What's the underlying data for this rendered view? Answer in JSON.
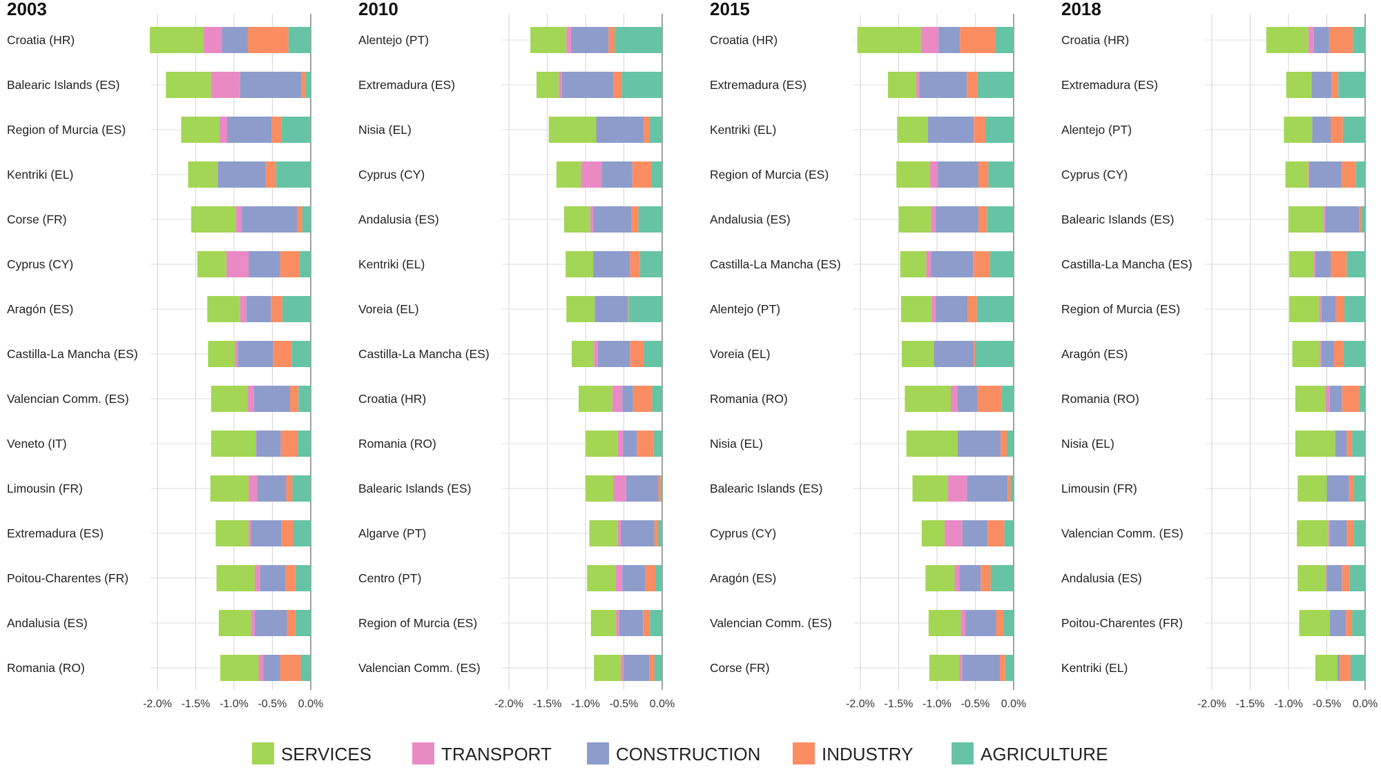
{
  "chart_data": {
    "type": "bar",
    "orientation": "horizontal",
    "stacked": true,
    "units": "%",
    "xlim": [
      -2.0,
      0.0
    ],
    "xticks": [
      "-2.0%",
      "-1.5%",
      "-1.0%",
      "-0.5%",
      "0.0%"
    ],
    "sectors": [
      "SERVICES",
      "TRANSPORT",
      "CONSTRUCTION",
      "INDUSTRY",
      "AGRICULTURE"
    ],
    "legend": [
      {
        "label": "SERVICES",
        "color": "#a3d654"
      },
      {
        "label": "TRANSPORT",
        "color": "#e98ac5"
      },
      {
        "label": "CONSTRUCTION",
        "color": "#8d9ccb"
      },
      {
        "label": "INDUSTRY",
        "color": "#fb8d62"
      },
      {
        "label": "AGRICULTURE",
        "color": "#66c3a5"
      }
    ],
    "panels": [
      {
        "title": "2003",
        "rows": [
          {
            "region": "Croatia (HR)",
            "values": [
              -0.7,
              -0.24,
              -0.34,
              -0.53,
              -0.29
            ]
          },
          {
            "region": "Balearic Islands (ES)",
            "values": [
              -0.59,
              -0.38,
              -0.8,
              -0.05,
              -0.07
            ]
          },
          {
            "region": "Region of Murcia (ES)",
            "values": [
              -0.5,
              -0.1,
              -0.58,
              -0.13,
              -0.38
            ]
          },
          {
            "region": "Kentriki (EL)",
            "values": [
              -0.38,
              -0.01,
              -0.62,
              -0.14,
              -0.45
            ]
          },
          {
            "region": "Corse (FR)",
            "values": [
              -0.58,
              -0.08,
              -0.72,
              -0.07,
              -0.11
            ]
          },
          {
            "region": "Cyprus (CY)",
            "values": [
              -0.38,
              -0.29,
              -0.41,
              -0.25,
              -0.15
            ]
          },
          {
            "region": "Aragón (ES)",
            "values": [
              -0.43,
              -0.08,
              -0.32,
              -0.15,
              -0.37
            ]
          },
          {
            "region": "Castilla-La Mancha (ES)",
            "values": [
              -0.35,
              -0.04,
              -0.46,
              -0.24,
              -0.25
            ]
          },
          {
            "region": "Valencian Comm. (ES)",
            "values": [
              -0.48,
              -0.08,
              -0.47,
              -0.11,
              -0.16
            ]
          },
          {
            "region": "Veneto (IT)",
            "values": [
              -0.58,
              -0.01,
              -0.32,
              -0.22,
              -0.17
            ]
          },
          {
            "region": "Limousin (FR)",
            "values": [
              -0.5,
              -0.11,
              -0.38,
              -0.08,
              -0.24
            ]
          },
          {
            "region": "Extremadura (ES)",
            "values": [
              -0.43,
              -0.03,
              -0.4,
              -0.15,
              -0.23
            ]
          },
          {
            "region": "Poitou-Charentes (FR)",
            "values": [
              -0.5,
              -0.07,
              -0.33,
              -0.13,
              -0.2
            ]
          },
          {
            "region": "Andalusia (ES)",
            "values": [
              -0.42,
              -0.05,
              -0.42,
              -0.11,
              -0.2
            ]
          },
          {
            "region": "Romania (RO)",
            "values": [
              -0.5,
              -0.06,
              -0.22,
              -0.27,
              -0.13
            ]
          }
        ]
      },
      {
        "title": "2010",
        "rows": [
          {
            "region": "Alentejo (PT)",
            "values": [
              -0.47,
              -0.06,
              -0.49,
              -0.08,
              -0.62
            ]
          },
          {
            "region": "Extremadura (ES)",
            "values": [
              -0.29,
              -0.04,
              -0.67,
              -0.11,
              -0.53
            ]
          },
          {
            "region": "Nisia (EL)",
            "values": [
              -0.62,
              0.0,
              -0.62,
              -0.07,
              -0.17
            ]
          },
          {
            "region": "Cyprus (CY)",
            "values": [
              -0.32,
              -0.27,
              -0.4,
              -0.25,
              -0.14
            ]
          },
          {
            "region": "Andalusia (ES)",
            "values": [
              -0.34,
              -0.04,
              -0.5,
              -0.09,
              -0.31
            ]
          },
          {
            "region": "Kentriki (EL)",
            "values": [
              -0.36,
              0.0,
              -0.48,
              -0.13,
              -0.29
            ]
          },
          {
            "region": "Voreia (EL)",
            "values": [
              -0.37,
              0.0,
              -0.43,
              -0.01,
              -0.44
            ]
          },
          {
            "region": "Castilla-La Mancha (ES)",
            "values": [
              -0.29,
              -0.05,
              -0.42,
              -0.18,
              -0.24
            ]
          },
          {
            "region": "Croatia (HR)",
            "values": [
              -0.44,
              -0.13,
              -0.14,
              -0.25,
              -0.13
            ]
          },
          {
            "region": "Romania (RO)",
            "values": [
              -0.42,
              -0.07,
              -0.18,
              -0.22,
              -0.11
            ]
          },
          {
            "region": "Balearic Islands (ES)",
            "values": [
              -0.36,
              -0.17,
              -0.42,
              -0.03,
              -0.02
            ]
          },
          {
            "region": "Algarve (PT)",
            "values": [
              -0.37,
              -0.04,
              -0.44,
              -0.05,
              -0.05
            ]
          },
          {
            "region": "Centro (PT)",
            "values": [
              -0.37,
              -0.09,
              -0.3,
              -0.13,
              -0.09
            ]
          },
          {
            "region": "Region of Murcia (ES)",
            "values": [
              -0.33,
              -0.04,
              -0.31,
              -0.09,
              -0.16
            ]
          },
          {
            "region": "Valencian Comm. (ES)",
            "values": [
              -0.35,
              -0.04,
              -0.33,
              -0.07,
              -0.1
            ]
          }
        ]
      },
      {
        "title": "2015",
        "rows": [
          {
            "region": "Croatia (HR)",
            "values": [
              -0.83,
              -0.23,
              -0.28,
              -0.46,
              -0.24
            ]
          },
          {
            "region": "Extremadura (ES)",
            "values": [
              -0.37,
              -0.04,
              -0.62,
              -0.14,
              -0.47
            ]
          },
          {
            "region": "Kentriki (EL)",
            "values": [
              -0.4,
              0.0,
              -0.6,
              -0.15,
              -0.37
            ]
          },
          {
            "region": "Region of Murcia (ES)",
            "values": [
              -0.44,
              -0.1,
              -0.53,
              -0.13,
              -0.33
            ]
          },
          {
            "region": "Andalusia (ES)",
            "values": [
              -0.42,
              -0.06,
              -0.56,
              -0.11,
              -0.35
            ]
          },
          {
            "region": "Castilla-La Mancha (ES)",
            "values": [
              -0.34,
              -0.06,
              -0.55,
              -0.22,
              -0.31
            ]
          },
          {
            "region": "Alentejo (PT)",
            "values": [
              -0.4,
              -0.05,
              -0.42,
              -0.12,
              -0.48
            ]
          },
          {
            "region": "Voreia (EL)",
            "values": [
              -0.42,
              0.0,
              -0.52,
              -0.02,
              -0.5
            ]
          },
          {
            "region": "Romania (RO)",
            "values": [
              -0.6,
              -0.09,
              -0.26,
              -0.31,
              -0.16
            ]
          },
          {
            "region": "Nisia (EL)",
            "values": [
              -0.67,
              0.0,
              -0.56,
              -0.08,
              -0.09
            ]
          },
          {
            "region": "Balearic Islands (ES)",
            "values": [
              -0.46,
              -0.25,
              -0.53,
              -0.04,
              -0.04
            ]
          },
          {
            "region": "Cyprus (CY)",
            "values": [
              -0.3,
              -0.23,
              -0.33,
              -0.22,
              -0.12
            ]
          },
          {
            "region": "Aragón (ES)",
            "values": [
              -0.38,
              -0.06,
              -0.28,
              -0.13,
              -0.3
            ]
          },
          {
            "region": "Valencian Comm. (ES)",
            "values": [
              -0.42,
              -0.06,
              -0.4,
              -0.1,
              -0.13
            ]
          },
          {
            "region": "Corse (FR)",
            "values": [
              -0.39,
              -0.04,
              -0.49,
              -0.07,
              -0.11
            ]
          }
        ]
      },
      {
        "title": "2018",
        "rows": [
          {
            "region": "Croatia (HR)",
            "values": [
              -0.55,
              -0.07,
              -0.2,
              -0.31,
              -0.16
            ]
          },
          {
            "region": "Extremadura (ES)",
            "values": [
              -0.33,
              0.0,
              -0.26,
              -0.09,
              -0.35
            ]
          },
          {
            "region": "Alentejo (PT)",
            "values": [
              -0.37,
              0.0,
              -0.24,
              -0.16,
              -0.29
            ]
          },
          {
            "region": "Cyprus (CY)",
            "values": [
              -0.3,
              -0.01,
              -0.42,
              -0.19,
              -0.12
            ]
          },
          {
            "region": "Balearic Islands (ES)",
            "values": [
              -0.46,
              -0.02,
              -0.44,
              -0.03,
              -0.05
            ]
          },
          {
            "region": "Castilla-La Mancha (ES)",
            "values": [
              -0.32,
              -0.02,
              -0.2,
              -0.21,
              -0.24
            ]
          },
          {
            "region": "Region of Murcia (ES)",
            "values": [
              -0.39,
              -0.03,
              -0.19,
              -0.11,
              -0.27
            ]
          },
          {
            "region": "Aragón (ES)",
            "values": [
              -0.36,
              -0.02,
              -0.16,
              -0.13,
              -0.28
            ]
          },
          {
            "region": "Romania (RO)",
            "values": [
              -0.39,
              -0.06,
              -0.16,
              -0.22,
              -0.08
            ]
          },
          {
            "region": "Nisia (EL)",
            "values": [
              -0.52,
              0.0,
              -0.15,
              -0.07,
              -0.17
            ]
          },
          {
            "region": "Limousin (FR)",
            "values": [
              -0.38,
              0.0,
              -0.29,
              -0.06,
              -0.15
            ]
          },
          {
            "region": "Valencian Comm. (ES)",
            "values": [
              -0.41,
              -0.02,
              -0.22,
              -0.09,
              -0.15
            ]
          },
          {
            "region": "Andalusia (ES)",
            "values": [
              -0.37,
              -0.01,
              -0.2,
              -0.1,
              -0.2
            ]
          },
          {
            "region": "Poitou-Charentes (FR)",
            "values": [
              -0.4,
              0.0,
              -0.21,
              -0.08,
              -0.17
            ]
          },
          {
            "region": "Kentriki (EL)",
            "values": [
              -0.29,
              0.0,
              -0.03,
              -0.14,
              -0.19
            ]
          }
        ]
      }
    ]
  }
}
